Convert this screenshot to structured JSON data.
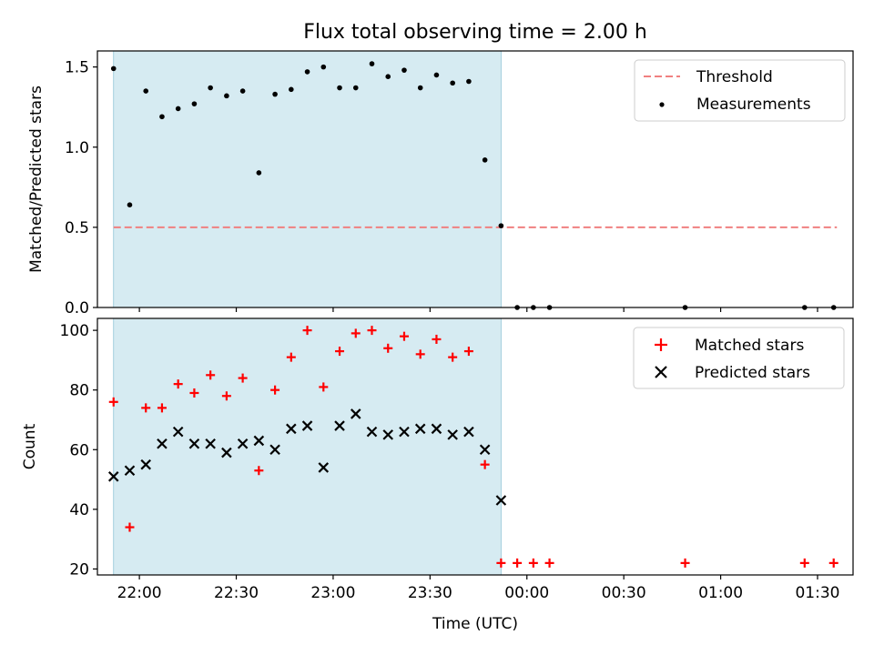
{
  "chart_data": [
    {
      "type": "scatter",
      "title": "Flux total observing time = 2.00 h",
      "xlabel": "",
      "ylabel": "Matched/Predicted stars",
      "xlim": [
        "21:47",
        "01:41"
      ],
      "ylim": [
        0,
        1.6
      ],
      "yticks": [
        0.0,
        0.5,
        1.0,
        1.5
      ],
      "ytick_labels": [
        "0.0",
        "0.5",
        "1.0",
        "1.5"
      ],
      "shaded_span": [
        "21:52",
        "23:52"
      ],
      "legend_position": "top-right",
      "threshold": {
        "name": "Threshold",
        "value": 0.5,
        "x_range": [
          "21:52",
          "01:36"
        ],
        "color": "#f08080",
        "style": "dashed"
      },
      "series": [
        {
          "name": "Measurements",
          "marker": "dot",
          "color": "#000000",
          "x": [
            "21:52",
            "21:57",
            "22:02",
            "22:07",
            "22:12",
            "22:17",
            "22:22",
            "22:27",
            "22:32",
            "22:37",
            "22:42",
            "22:47",
            "22:52",
            "22:57",
            "23:02",
            "23:07",
            "23:12",
            "23:17",
            "23:22",
            "23:27",
            "23:32",
            "23:37",
            "23:42",
            "23:47",
            "23:52",
            "23:57",
            "00:02",
            "00:07",
            "00:49",
            "01:26",
            "01:35"
          ],
          "y": [
            1.49,
            0.64,
            1.35,
            1.19,
            1.24,
            1.27,
            1.37,
            1.32,
            1.35,
            0.84,
            1.33,
            1.36,
            1.47,
            1.5,
            1.37,
            1.37,
            1.52,
            1.44,
            1.48,
            1.37,
            1.45,
            1.4,
            1.41,
            0.92,
            0.51,
            0.0,
            0.0,
            0.0,
            0.0,
            0.0,
            0.0
          ]
        }
      ]
    },
    {
      "type": "scatter",
      "title": "",
      "xlabel": "Time (UTC)",
      "ylabel": "Count",
      "xlim": [
        "21:47",
        "01:41"
      ],
      "ylim": [
        18,
        104
      ],
      "yticks": [
        20,
        40,
        60,
        80,
        100
      ],
      "ytick_labels": [
        "20",
        "40",
        "60",
        "80",
        "100"
      ],
      "xticks": [
        "22:00",
        "22:30",
        "23:00",
        "23:30",
        "00:00",
        "00:30",
        "01:00",
        "01:30"
      ],
      "xtick_labels": [
        "22:00",
        "22:30",
        "23:00",
        "23:30",
        "00:00",
        "00:30",
        "01:00",
        "01:30"
      ],
      "shaded_span": [
        "21:52",
        "23:52"
      ],
      "legend_position": "top-right",
      "series": [
        {
          "name": "Matched stars",
          "marker": "plus",
          "color": "#ff0000",
          "x": [
            "21:52",
            "21:57",
            "22:02",
            "22:07",
            "22:12",
            "22:17",
            "22:22",
            "22:27",
            "22:32",
            "22:37",
            "22:42",
            "22:47",
            "22:52",
            "22:57",
            "23:02",
            "23:07",
            "23:12",
            "23:17",
            "23:22",
            "23:27",
            "23:32",
            "23:37",
            "23:42",
            "23:47",
            "23:52",
            "23:57",
            "00:02",
            "00:07",
            "00:49",
            "01:26",
            "01:35"
          ],
          "y": [
            76,
            34,
            74,
            74,
            82,
            79,
            85,
            78,
            84,
            53,
            80,
            91,
            100,
            81,
            93,
            99,
            100,
            94,
            98,
            92,
            97,
            91,
            93,
            55,
            22,
            22,
            22,
            22,
            22,
            22,
            22
          ]
        },
        {
          "name": "Predicted stars",
          "marker": "x",
          "color": "#000000",
          "x": [
            "21:52",
            "21:57",
            "22:02",
            "22:07",
            "22:12",
            "22:17",
            "22:22",
            "22:27",
            "22:32",
            "22:37",
            "22:42",
            "22:47",
            "22:52",
            "22:57",
            "23:02",
            "23:07",
            "23:12",
            "23:17",
            "23:22",
            "23:27",
            "23:32",
            "23:37",
            "23:42",
            "23:47",
            "23:52"
          ],
          "y": [
            51,
            53,
            55,
            62,
            66,
            62,
            62,
            59,
            62,
            63,
            60,
            67,
            68,
            54,
            68,
            72,
            66,
            65,
            66,
            67,
            67,
            65,
            66,
            60,
            43
          ]
        }
      ]
    }
  ],
  "colors": {
    "shade": "#add8e6",
    "threshold": "#f08080",
    "matched": "#ff0000",
    "predicted": "#000000"
  }
}
